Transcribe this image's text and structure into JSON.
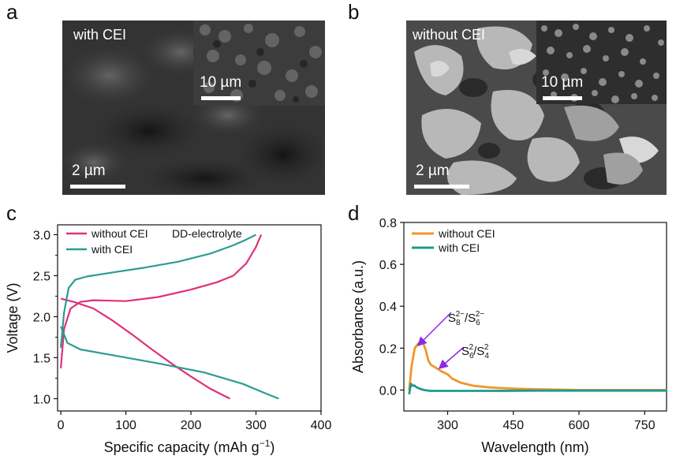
{
  "panels": {
    "a": {
      "letter": "a",
      "label": "with CEI",
      "scale_main": "2 µm",
      "scale_inset": "10 µm"
    },
    "b": {
      "letter": "b",
      "label": "without CEI",
      "scale_main": "2 µm",
      "scale_inset": "10 µm"
    },
    "c": {
      "letter": "c"
    },
    "d": {
      "letter": "d"
    }
  },
  "chart_data": [
    {
      "id": "c",
      "type": "line",
      "title": "",
      "annotation": "DD-electrolyte",
      "xlabel": "Specific capacity (mAh g",
      "xlabel_sup": "−1",
      "xlabel_close": ")",
      "ylabel": "Voltage (V)",
      "xlim": [
        -5,
        400
      ],
      "ylim": [
        0.85,
        3.12
      ],
      "xticks": [
        "0",
        "100",
        "200",
        "300",
        "400"
      ],
      "yticks": [
        "1.0",
        "1.5",
        "2.0",
        "2.5",
        "3.0"
      ],
      "legend_position": "top-left",
      "series": [
        {
          "name": "without CEI",
          "color": "#e0307a",
          "curves": [
            {
              "x": [
                0,
                5,
                15,
                30,
                50,
                100,
                150,
                200,
                240,
                265,
                285,
                300,
                308
              ],
              "y": [
                1.37,
                1.85,
                2.1,
                2.18,
                2.2,
                2.19,
                2.24,
                2.33,
                2.42,
                2.5,
                2.65,
                2.85,
                3.0
              ]
            },
            {
              "x": [
                0,
                20,
                50,
                80,
                110,
                140,
                170,
                200,
                230,
                260
              ],
              "y": [
                2.22,
                2.18,
                2.1,
                1.95,
                1.78,
                1.6,
                1.43,
                1.27,
                1.12,
                1.0
              ]
            }
          ]
        },
        {
          "name": "with CEI",
          "color": "#2e9a94",
          "curves": [
            {
              "x": [
                0,
                5,
                12,
                22,
                40,
                80,
                130,
                180,
                230,
                265,
                285,
                300
              ],
              "y": [
                1.62,
                2.05,
                2.35,
                2.45,
                2.49,
                2.54,
                2.6,
                2.67,
                2.77,
                2.87,
                2.94,
                3.0
              ]
            },
            {
              "x": [
                0,
                10,
                30,
                80,
                150,
                220,
                280,
                310,
                335
              ],
              "y": [
                1.88,
                1.68,
                1.6,
                1.53,
                1.43,
                1.32,
                1.18,
                1.08,
                1.0
              ]
            }
          ]
        }
      ]
    },
    {
      "id": "d",
      "type": "line",
      "title": "",
      "xlabel": "Wavelength (nm)",
      "ylabel": "Absorbance (a.u.)",
      "xlim": [
        200,
        800
      ],
      "ylim": [
        -0.1,
        0.8
      ],
      "xticks": [
        "300",
        "450",
        "600",
        "750"
      ],
      "yticks": [
        "0.0",
        "0.2",
        "0.4",
        "0.6",
        "0.8"
      ],
      "legend_position": "top-left",
      "annotations": [
        {
          "base": "S",
          "sub1": "8",
          "sup1": "2−",
          "sep": "/S",
          "sub2": "6",
          "sup2": "2−",
          "arrow_to": [
            252,
            0.19
          ],
          "text_at": [
            252,
            0.4
          ]
        },
        {
          "base": "S",
          "sub1": "6",
          "sup1": "2",
          "sep": "/S",
          "sub2": "4",
          "sup2": "2",
          "arrow_to": [
            300,
            0.08
          ],
          "text_at": [
            300,
            0.25
          ]
        }
      ],
      "series": [
        {
          "name": "without CEI",
          "color": "#f0962a",
          "x": [
            212,
            218,
            225,
            232,
            238,
            244,
            250,
            256,
            262,
            270,
            285,
            300,
            310,
            330,
            360,
            400,
            450,
            500,
            550,
            600,
            700,
            800
          ],
          "y": [
            0.0,
            0.12,
            0.2,
            0.22,
            0.23,
            0.225,
            0.19,
            0.14,
            0.12,
            0.11,
            0.09,
            0.075,
            0.055,
            0.035,
            0.02,
            0.012,
            0.007,
            0.004,
            0.002,
            0.0,
            0.0,
            0.0
          ]
        },
        {
          "name": "with CEI",
          "color": "#1f9a8f",
          "x": [
            212,
            216,
            220,
            224,
            228,
            232,
            238,
            246,
            260,
            300,
            400,
            500,
            600,
            700,
            800
          ],
          "y": [
            -0.02,
            0.03,
            0.02,
            0.022,
            0.015,
            0.01,
            0.005,
            0.0,
            -0.004,
            -0.004,
            -0.004,
            -0.003,
            -0.003,
            -0.003,
            -0.003
          ]
        }
      ]
    }
  ]
}
